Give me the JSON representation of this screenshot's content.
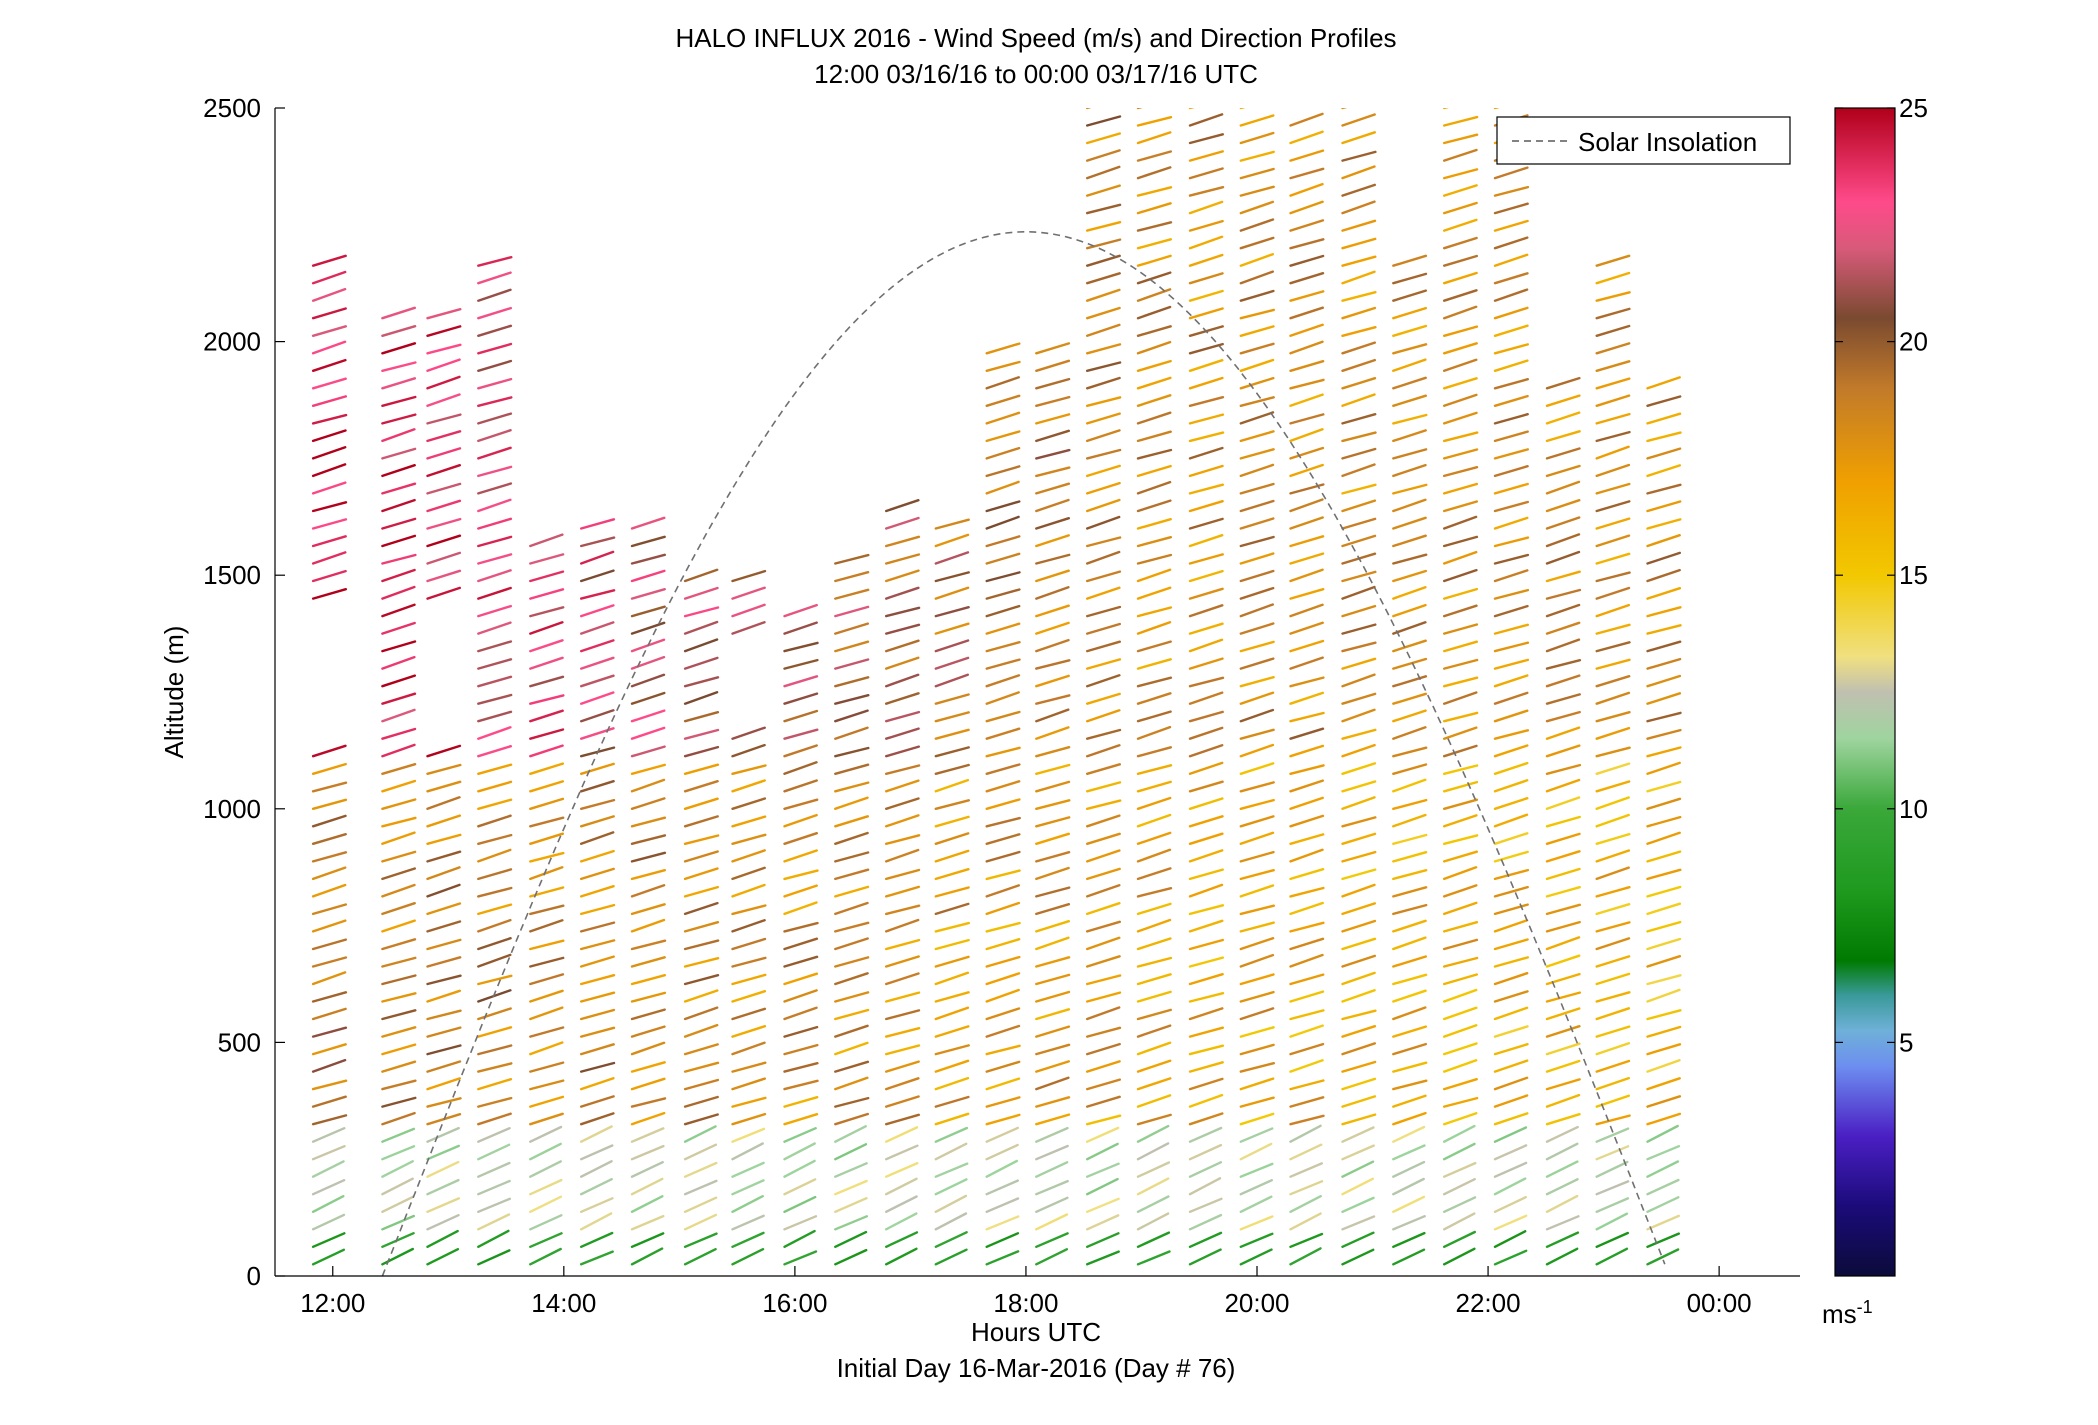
{
  "chart_data": {
    "type": "barbs",
    "title": "HALO INFLUX 2016 - Wind Speed (m/s) and Direction Profiles",
    "subtitle": "12:00 03/16/16 to 00:00 03/17/16  UTC",
    "xlabel": "Hours UTC",
    "xlabel2": "Initial Day 16-Mar-2016 (Day # 76)",
    "ylabel": "Altitude (m)",
    "xlim": [
      11.5,
      24.7
    ],
    "ylim": [
      0,
      2500
    ],
    "x_ticks": [
      12,
      14,
      16,
      18,
      20,
      22,
      24
    ],
    "x_tick_labels": [
      "12:00",
      "14:00",
      "16:00",
      "18:00",
      "20:00",
      "22:00",
      "00:00"
    ],
    "y_ticks": [
      0,
      500,
      1000,
      1500,
      2000,
      2500
    ],
    "y_tick_labels": [
      "0",
      "500",
      "1000",
      "1500",
      "2000",
      "2500"
    ],
    "colorbar": {
      "range": [
        0,
        25
      ],
      "ticks": [
        5,
        10,
        15,
        20,
        25
      ],
      "tick_labels": [
        "5",
        "10",
        "15",
        "20",
        "25"
      ],
      "unit_label": "ms",
      "unit_exponent": "-1"
    },
    "legend": {
      "entries": [
        {
          "name": "Solar Insolation",
          "style": "dashed",
          "color": "#808080"
        }
      ],
      "position": "top-right"
    },
    "grid": false,
    "solar_insolation": {
      "start_hour": 12.43,
      "peak_hour": 18.0,
      "end_hour": 23.57,
      "peak_altitude_equiv": 2235
    },
    "profile_times": [
      11.83,
      12.43,
      12.82,
      13.26,
      13.71,
      14.15,
      14.59,
      15.05,
      15.46,
      15.91,
      16.35,
      16.79,
      17.22,
      17.66,
      18.09,
      18.53,
      18.97,
      19.42,
      19.86,
      20.29,
      20.74,
      21.18,
      21.62,
      22.06,
      22.51,
      22.94,
      23.38
    ],
    "profile_max_altitude": [
      2180,
      2080,
      2050,
      2180,
      1580,
      1600,
      1620,
      1500,
      1520,
      1430,
      1530,
      1650,
      1620,
      1990,
      2000,
      2500,
      2500,
      2500,
      2500,
      2480,
      2500,
      2180,
      2500,
      2500,
      1920,
      2180,
      1910
    ],
    "gap_regions": [
      {
        "times": [
          11.83,
          12.82
        ],
        "from": 1120,
        "to": 1440
      },
      {
        "times": [
          12.43
        ],
        "from": 2080,
        "to": 2080
      },
      {
        "times": [
          15.46
        ],
        "from": 1180,
        "to": 1370
      }
    ],
    "speed_profile_description": {
      "surface_0_100m": 8,
      "near_100_300m": 11,
      "mid_300_1100m_early": 19,
      "mid_300_1100m_late": 16,
      "upper_early_above_1100m": 24,
      "upper_late_above_1100m": 18
    }
  }
}
